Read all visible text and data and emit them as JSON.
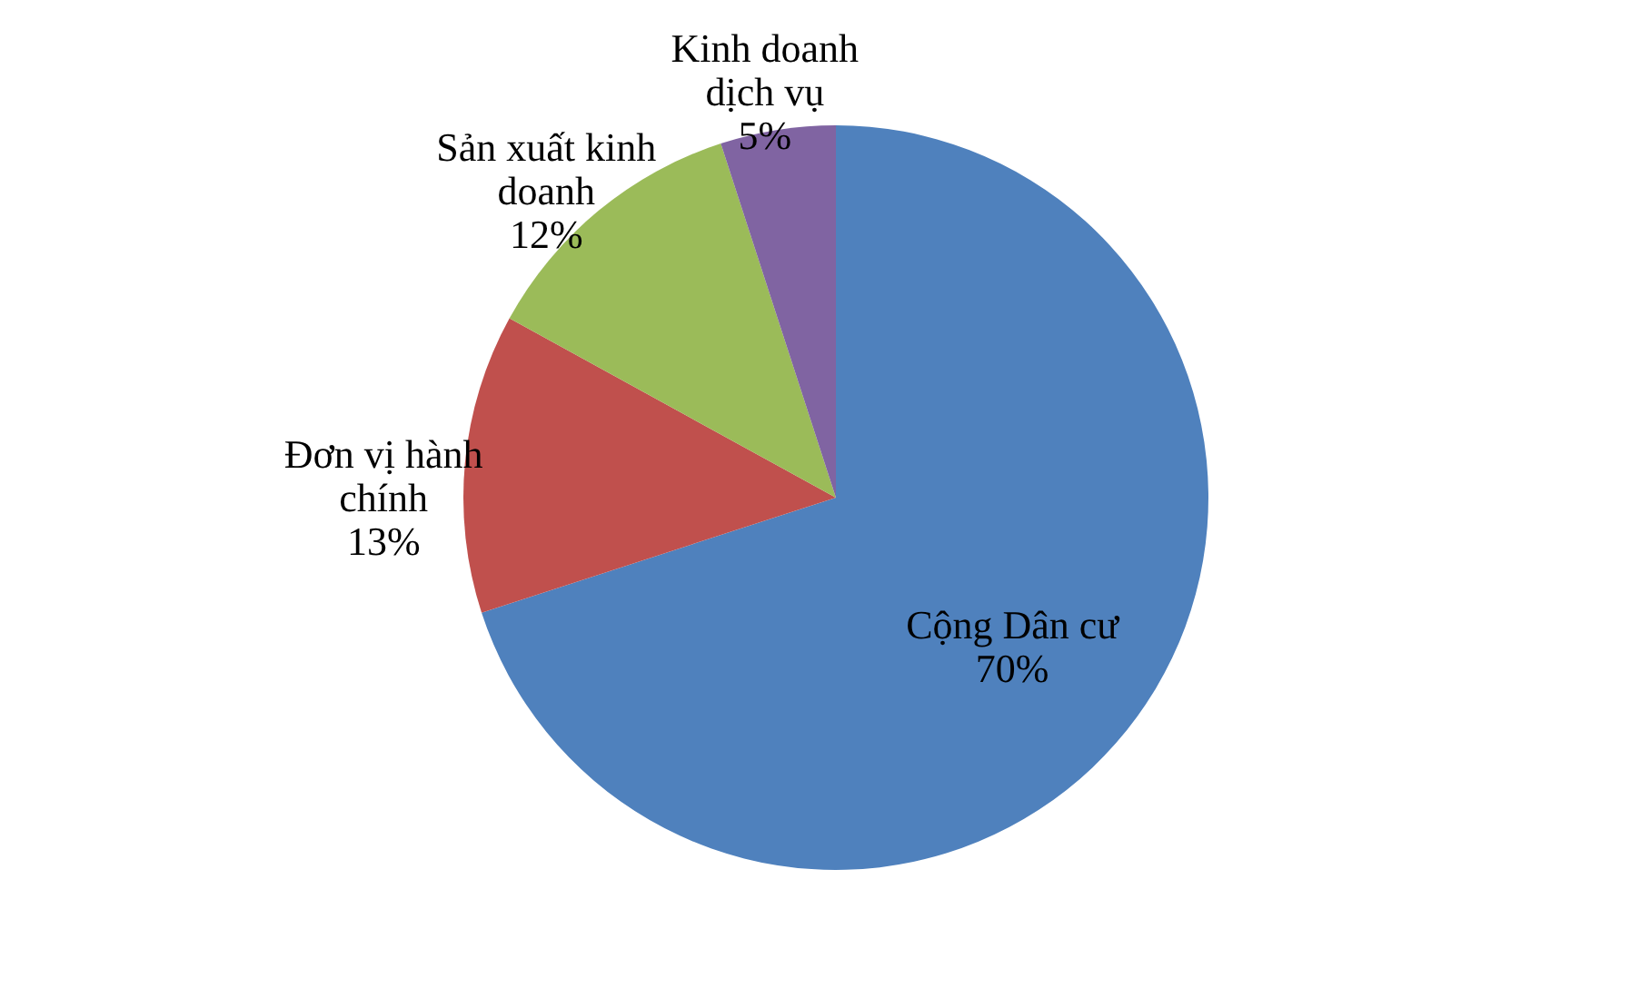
{
  "chart_data": {
    "type": "pie",
    "categories": [
      "Cộng Dân cư",
      "Đơn vị hành chính",
      "Sản xuất kinh doanh",
      "Kinh doanh dịch vụ"
    ],
    "values": [
      70,
      13,
      12,
      5
    ],
    "value_labels": [
      "70%",
      "13%",
      "12%",
      "5%"
    ],
    "colors": [
      "#4f81bd",
      "#c0504d",
      "#9bbb59",
      "#8064a2"
    ]
  }
}
